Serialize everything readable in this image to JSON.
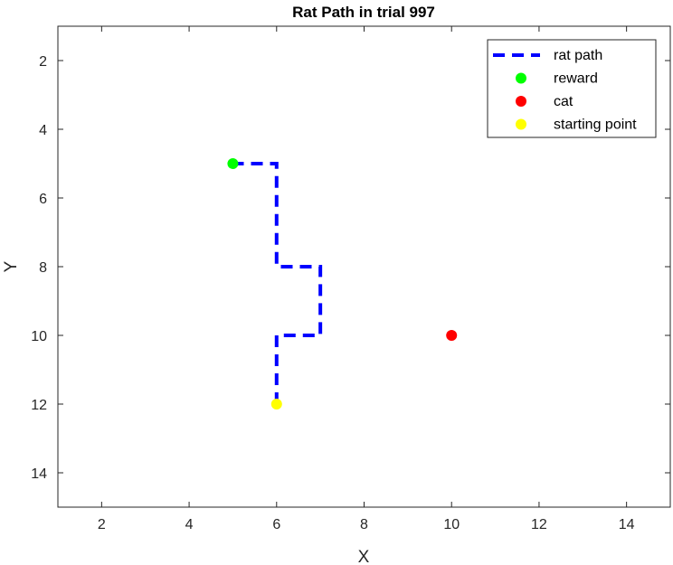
{
  "chart_data": {
    "type": "line",
    "title": "Rat Path in trial 997",
    "xlabel": "X",
    "ylabel": "Y",
    "xlim": [
      1,
      15
    ],
    "ylim": [
      1,
      15
    ],
    "y_reversed": true,
    "xticks": [
      2,
      4,
      6,
      8,
      10,
      12,
      14
    ],
    "yticks": [
      2,
      4,
      6,
      8,
      10,
      12,
      14
    ],
    "grid": false,
    "legend_position": "top-right",
    "series": [
      {
        "name": "rat path",
        "kind": "line",
        "style": "dashed",
        "color": "#0000ff",
        "x": [
          6,
          6,
          7,
          7,
          6,
          6,
          5
        ],
        "y": [
          12,
          10,
          10,
          8,
          8,
          5,
          5
        ]
      },
      {
        "name": "reward",
        "kind": "marker",
        "color": "#00ff00",
        "x": [
          5
        ],
        "y": [
          5
        ]
      },
      {
        "name": "cat",
        "kind": "marker",
        "color": "#ff0000",
        "x": [
          10
        ],
        "y": [
          10
        ]
      },
      {
        "name": "starting point",
        "kind": "marker",
        "color": "#ffff00",
        "x": [
          6
        ],
        "y": [
          12
        ]
      }
    ]
  }
}
